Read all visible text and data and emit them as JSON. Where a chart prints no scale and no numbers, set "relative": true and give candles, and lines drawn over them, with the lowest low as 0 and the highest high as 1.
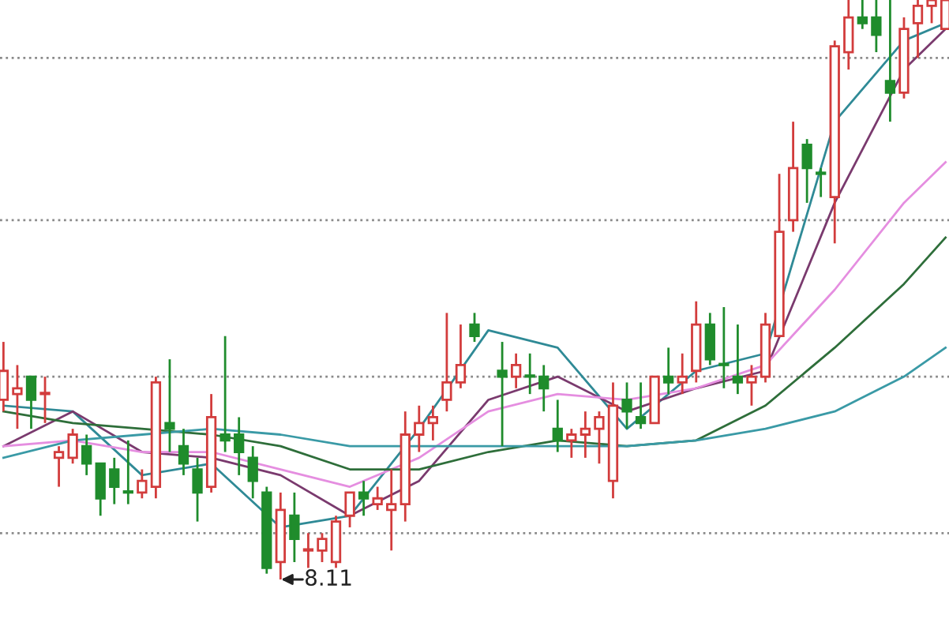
{
  "chart_data": {
    "type": "candlestick",
    "relative": true,
    "categories": [
      null,
      null,
      null,
      null,
      null,
      null,
      null,
      null,
      null,
      null,
      null,
      null,
      null,
      null,
      null,
      null,
      null,
      null,
      null,
      null,
      null,
      null,
      null,
      null,
      null,
      null,
      null,
      null,
      null,
      null,
      null,
      null,
      null,
      null,
      null,
      null,
      null,
      null,
      null,
      null,
      null,
      null,
      null,
      null,
      null,
      null,
      null,
      null,
      null,
      null,
      null,
      null,
      null,
      null,
      null,
      null,
      null,
      null,
      null,
      null,
      null,
      null,
      null,
      null,
      null,
      null,
      null,
      null,
      null
    ],
    "ohlc": [
      [
        0.31,
        0.41,
        0.29,
        0.36
      ],
      [
        0.32,
        0.37,
        0.26,
        0.33
      ],
      [
        0.35,
        0.35,
        0.26,
        0.31
      ],
      [
        0.32,
        0.35,
        0.27,
        0.32
      ],
      [
        0.21,
        0.23,
        0.16,
        0.22
      ],
      [
        0.21,
        0.26,
        0.2,
        0.25
      ],
      [
        0.23,
        0.25,
        0.18,
        0.2
      ],
      [
        0.2,
        0.2,
        0.11,
        0.14
      ],
      [
        0.19,
        0.21,
        0.13,
        0.16
      ],
      [
        0.15,
        0.24,
        0.13,
        0.15
      ],
      [
        0.15,
        0.19,
        0.14,
        0.17
      ],
      [
        0.16,
        0.35,
        0.14,
        0.34
      ],
      [
        0.27,
        0.38,
        0.22,
        0.26
      ],
      [
        0.23,
        0.26,
        0.18,
        0.2
      ],
      [
        0.19,
        0.21,
        0.1,
        0.15
      ],
      [
        0.16,
        0.32,
        0.15,
        0.28
      ],
      [
        0.25,
        0.42,
        0.22,
        0.24
      ],
      [
        0.25,
        0.28,
        0.18,
        0.22
      ],
      [
        0.21,
        0.23,
        0.14,
        0.17
      ],
      [
        0.15,
        0.16,
        0.01,
        0.02
      ],
      [
        0.03,
        0.15,
        0,
        0.12
      ],
      [
        0.11,
        0.15,
        0.03,
        0.07
      ],
      [
        0.05,
        0.08,
        0.02,
        0.05
      ],
      [
        0.05,
        0.08,
        0.03,
        0.07
      ],
      [
        0.03,
        0.11,
        0.02,
        0.1
      ],
      [
        0.11,
        0.15,
        0.09,
        0.15
      ],
      [
        0.15,
        0.17,
        0.11,
        0.14
      ],
      [
        0.13,
        0.16,
        0.12,
        0.14
      ],
      [
        0.12,
        0.19,
        0.05,
        0.13
      ],
      [
        0.13,
        0.29,
        0.1,
        0.25
      ],
      [
        0.25,
        0.3,
        0.22,
        0.27
      ],
      [
        0.27,
        0.3,
        0.24,
        0.28
      ],
      [
        0.31,
        0.46,
        0.29,
        0.34
      ],
      [
        0.34,
        0.44,
        0.33,
        0.37
      ],
      [
        0.44,
        0.46,
        0.41,
        0.42
      ],
      null,
      [
        0.36,
        0.41,
        0.23,
        0.35
      ],
      [
        0.35,
        0.39,
        0.33,
        0.37
      ],
      [
        0.35,
        0.39,
        0.32,
        0.35
      ],
      [
        0.35,
        0.37,
        0.29,
        0.33
      ],
      [
        0.26,
        0.31,
        0.22,
        0.24
      ],
      [
        0.24,
        0.26,
        0.21,
        0.25
      ],
      [
        0.25,
        0.29,
        0.21,
        0.26
      ],
      [
        0.26,
        0.29,
        0.2,
        0.28
      ],
      [
        0.17,
        0.34,
        0.14,
        0.3
      ],
      [
        0.31,
        0.34,
        0.26,
        0.29
      ],
      [
        0.28,
        0.34,
        0.26,
        0.27
      ],
      [
        0.27,
        0.35,
        0.27,
        0.35
      ],
      [
        0.35,
        0.4,
        0.32,
        0.34
      ],
      [
        0.34,
        0.39,
        0.32,
        0.35
      ],
      [
        0.36,
        0.48,
        0.34,
        0.44
      ],
      [
        0.44,
        0.46,
        0.37,
        0.38
      ],
      [
        0.37,
        0.47,
        0.33,
        0.37
      ],
      [
        0.35,
        0.44,
        0.32,
        0.34
      ],
      [
        0.34,
        0.37,
        0.3,
        0.35
      ],
      [
        0.35,
        0.46,
        0.34,
        0.44
      ],
      [
        0.42,
        0.7,
        0.42,
        0.6
      ],
      [
        0.62,
        0.79,
        0.6,
        0.71
      ],
      [
        0.75,
        0.76,
        0.65,
        0.71
      ],
      [
        0.7,
        0.71,
        0.66,
        0.7
      ],
      [
        0.66,
        0.93,
        0.58,
        0.92
      ],
      [
        0.91,
        1,
        0.88,
        0.97
      ],
      [
        0.97,
        1,
        0.95,
        0.96
      ],
      [
        0.97,
        1,
        0.91,
        0.94
      ],
      [
        0.86,
        1,
        0.79,
        0.84
      ],
      [
        0.84,
        0.97,
        0.83,
        0.95
      ],
      [
        0.96,
        1,
        0.9,
        0.99
      ],
      [
        0.99,
        1,
        0.96,
        1
      ],
      [
        0.95,
        1,
        0.95,
        1
      ]
    ],
    "colors": [
      "#d23c3c",
      "#d23c3c",
      "#1f8c2c",
      "#d23c3c",
      "#d23c3c",
      "#d23c3c",
      "#1f8c2c",
      "#1f8c2c",
      "#1f8c2c",
      "#1f8c2c",
      "#d23c3c",
      "#d23c3c",
      "#1f8c2c",
      "#1f8c2c",
      "#1f8c2c",
      "#d23c3c",
      "#1f8c2c",
      "#1f8c2c",
      "#1f8c2c",
      "#1f8c2c",
      "#d23c3c",
      "#1f8c2c",
      "#d23c3c",
      "#d23c3c",
      "#d23c3c",
      "#d23c3c",
      "#1f8c2c",
      "#d23c3c",
      "#d23c3c",
      "#d23c3c",
      "#d23c3c",
      "#d23c3c",
      "#d23c3c",
      "#d23c3c",
      "#1f8c2c",
      null,
      "#1f8c2c",
      "#d23c3c",
      "#1f8c2c",
      "#1f8c2c",
      "#1f8c2c",
      "#d23c3c",
      "#d23c3c",
      "#d23c3c",
      "#d23c3c",
      "#1f8c2c",
      "#1f8c2c",
      "#d23c3c",
      "#1f8c2c",
      "#d23c3c",
      "#d23c3c",
      "#1f8c2c",
      "#1f8c2c",
      "#1f8c2c",
      "#d23c3c",
      "#d23c3c",
      "#d23c3c",
      "#d23c3c",
      "#1f8c2c",
      "#1f8c2c",
      "#d23c3c",
      "#d23c3c",
      "#1f8c2c",
      "#1f8c2c",
      "#1f8c2c",
      "#d23c3c",
      "#d23c3c",
      "#d23c3c",
      "#d23c3c"
    ],
    "series": [
      {
        "type": "line",
        "color": "#2f8a96",
        "values": [
          0.3,
          null,
          null,
          null,
          null,
          0.29,
          null,
          null,
          null,
          null,
          0.18,
          null,
          null,
          null,
          null,
          0.2,
          null,
          null,
          null,
          null,
          0.09,
          null,
          null,
          null,
          null,
          0.11,
          null,
          null,
          null,
          null,
          0.26,
          null,
          null,
          null,
          null,
          0.43,
          null,
          null,
          null,
          null,
          0.4,
          null,
          null,
          null,
          null,
          0.26,
          null,
          null,
          null,
          null,
          0.36,
          null,
          null,
          null,
          null,
          0.39,
          null,
          null,
          null,
          null,
          0.79,
          null,
          null,
          null,
          null,
          0.93,
          null,
          null,
          0.96
        ]
      },
      {
        "type": "line",
        "color": "#7a3a6e",
        "values": [
          0.23,
          null,
          null,
          null,
          null,
          0.29,
          null,
          null,
          null,
          null,
          0.22,
          null,
          null,
          null,
          null,
          0.21,
          null,
          null,
          null,
          null,
          0.18,
          null,
          null,
          null,
          null,
          0.11,
          null,
          null,
          null,
          null,
          0.17,
          null,
          null,
          null,
          null,
          0.31,
          null,
          null,
          null,
          null,
          0.35,
          null,
          null,
          null,
          null,
          0.29,
          null,
          null,
          null,
          null,
          0.33,
          null,
          null,
          null,
          null,
          0.36,
          null,
          null,
          null,
          null,
          0.65,
          null,
          null,
          null,
          null,
          0.88,
          null,
          null,
          0.95
        ]
      },
      {
        "type": "line",
        "color": "#e58ee0",
        "values": [
          0.23,
          null,
          null,
          null,
          null,
          0.24,
          null,
          null,
          null,
          null,
          0.22,
          null,
          null,
          null,
          null,
          0.22,
          null,
          null,
          null,
          null,
          0.19,
          null,
          null,
          null,
          null,
          0.16,
          null,
          null,
          null,
          null,
          0.21,
          null,
          null,
          null,
          null,
          0.29,
          null,
          null,
          null,
          null,
          0.32,
          null,
          null,
          null,
          null,
          0.31,
          null,
          null,
          null,
          null,
          0.33,
          null,
          null,
          null,
          null,
          0.37,
          null,
          null,
          null,
          null,
          0.5,
          null,
          null,
          null,
          null,
          0.65,
          null,
          null,
          0.72
        ]
      },
      {
        "type": "line",
        "color": "#2e6e3a",
        "values": [
          0.29,
          null,
          null,
          null,
          null,
          0.27,
          null,
          null,
          null,
          null,
          0.26,
          null,
          null,
          null,
          null,
          0.25,
          null,
          null,
          null,
          null,
          0.23,
          null,
          null,
          null,
          null,
          0.19,
          null,
          null,
          null,
          null,
          0.19,
          null,
          null,
          null,
          null,
          0.22,
          null,
          null,
          null,
          null,
          0.24,
          null,
          null,
          null,
          null,
          0.23,
          null,
          null,
          null,
          null,
          0.24,
          null,
          null,
          null,
          null,
          0.3,
          null,
          null,
          null,
          null,
          0.4,
          null,
          null,
          null,
          null,
          0.51,
          null,
          null,
          0.59
        ]
      },
      {
        "type": "line",
        "color": "#3a9aa6",
        "values": [
          0.21,
          null,
          null,
          null,
          null,
          0.24,
          null,
          null,
          null,
          null,
          0.25,
          null,
          null,
          null,
          null,
          0.26,
          null,
          null,
          null,
          null,
          0.25,
          null,
          null,
          null,
          null,
          0.23,
          null,
          null,
          null,
          null,
          0.23,
          null,
          null,
          null,
          null,
          0.23,
          null,
          null,
          null,
          null,
          0.23,
          null,
          null,
          null,
          null,
          0.23,
          null,
          null,
          null,
          null,
          0.24,
          null,
          null,
          null,
          null,
          0.26,
          null,
          null,
          null,
          null,
          0.29,
          null,
          null,
          null,
          null,
          0.35,
          null,
          null,
          0.4
        ]
      }
    ],
    "ref_lines": [
      {
        "axis": "y",
        "value": 0.9,
        "color": "#8a8a8a",
        "line_style": "dotted"
      },
      {
        "axis": "y",
        "value": 0.62,
        "color": "#8a8a8a",
        "line_style": "dotted"
      },
      {
        "axis": "y",
        "value": 0.35,
        "color": "#8a8a8a",
        "line_style": "dotted"
      },
      {
        "axis": "y",
        "value": 0.08,
        "color": "#8a8a8a",
        "line_style": "dotted"
      }
    ],
    "annotations": [
      "8.11"
    ]
  }
}
